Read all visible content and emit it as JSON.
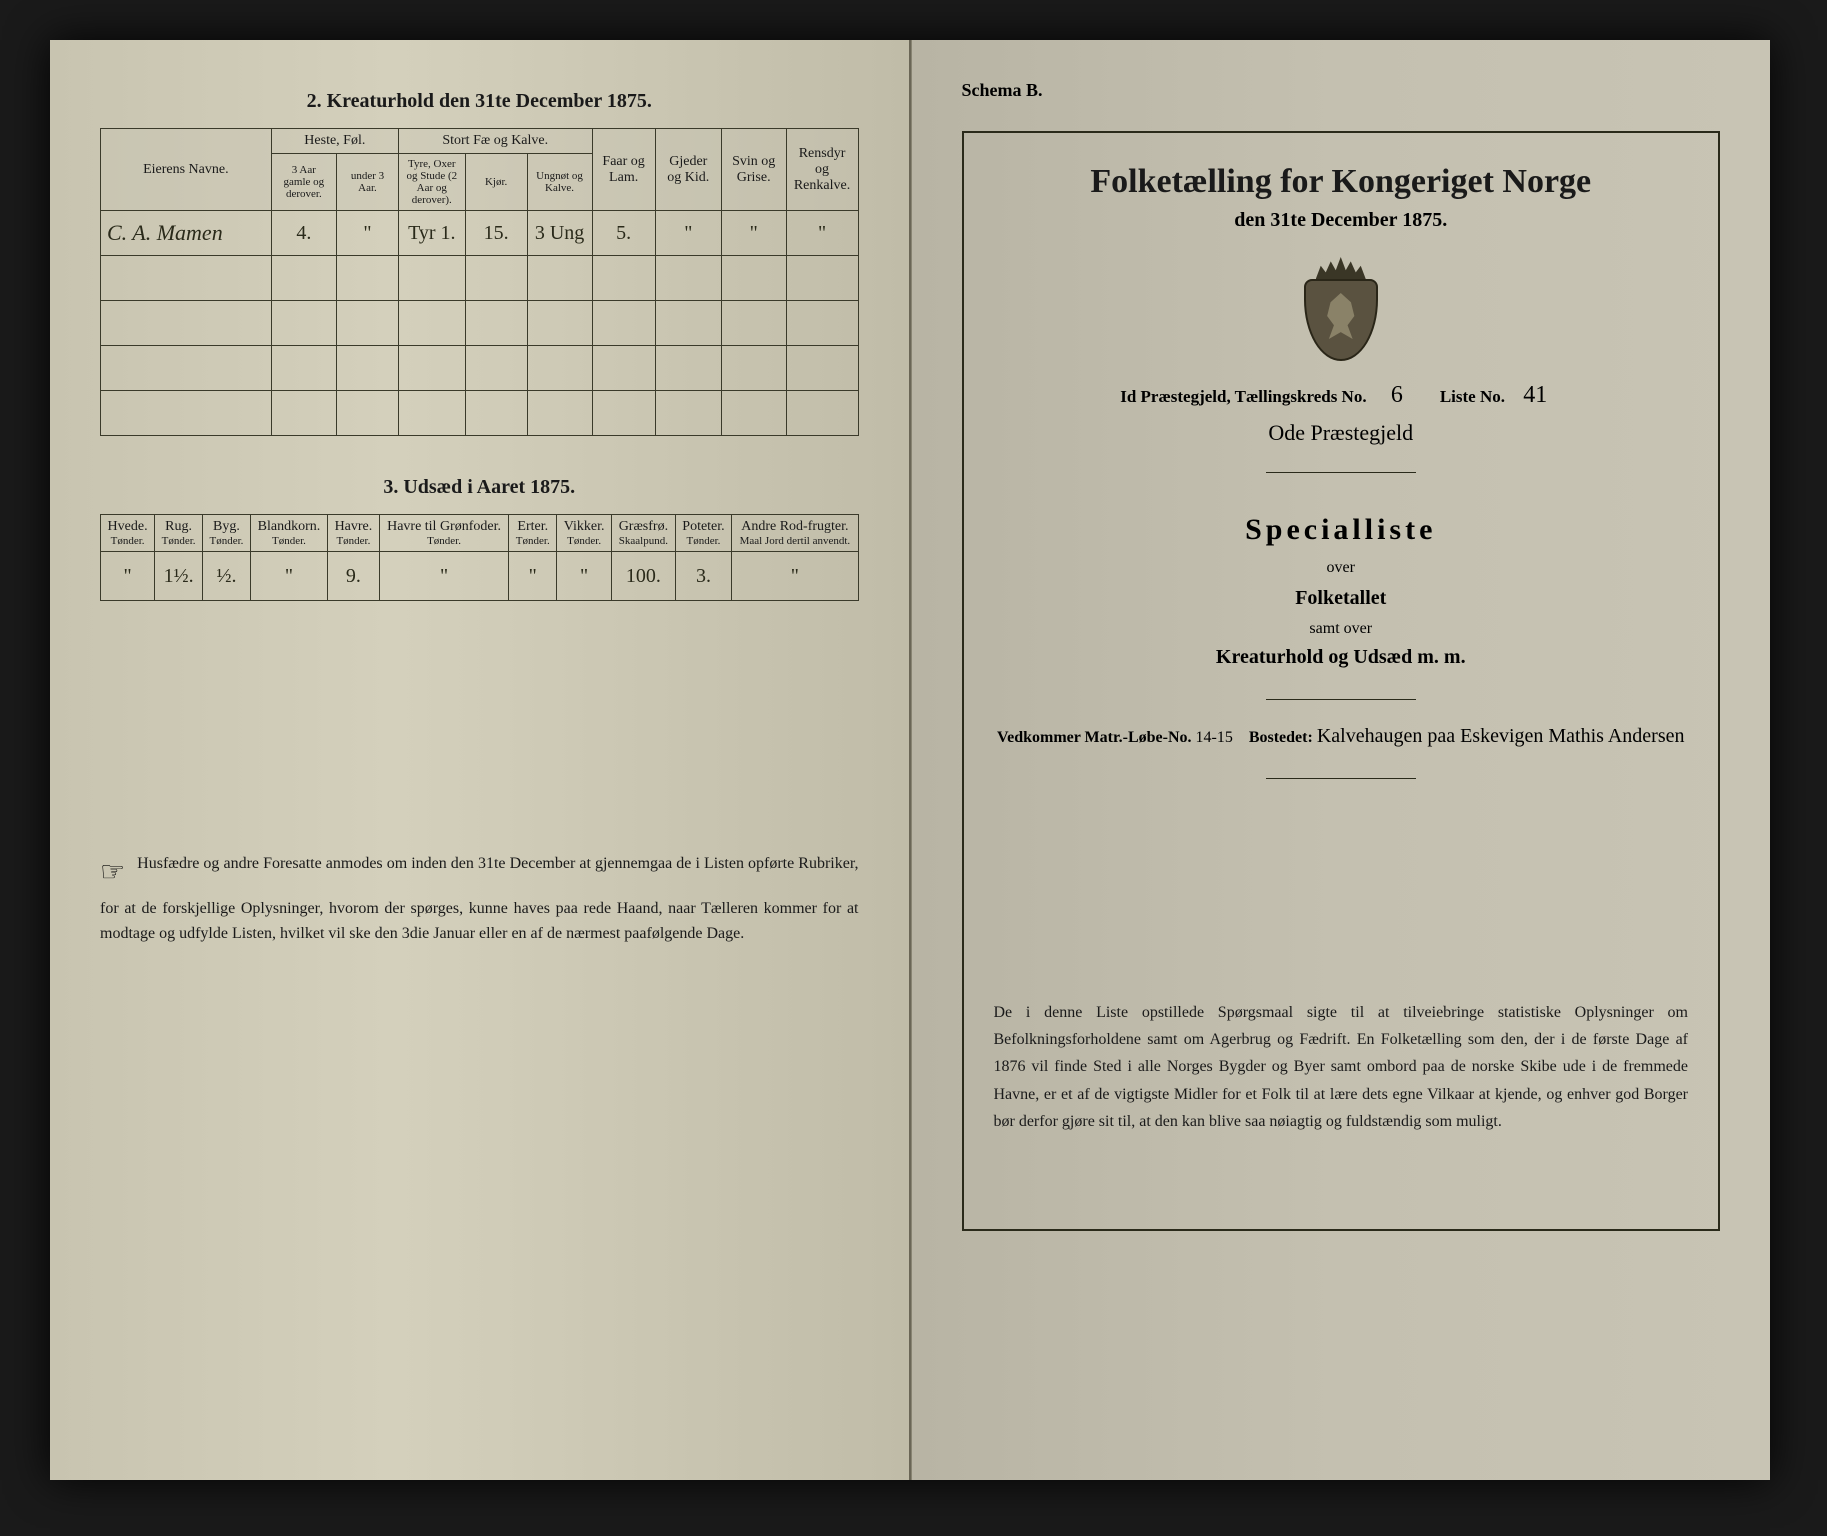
{
  "left": {
    "section2_title": "2.  Kreaturhold den 31te December 1875.",
    "livestock": {
      "headers": {
        "name": "Eierens Navne.",
        "heste": "Heste, Føl.",
        "heste_sub1": "3 Aar gamle og derover.",
        "heste_sub2": "under 3 Aar.",
        "stort": "Stort Fæ og Kalve.",
        "stort_sub1": "Tyre, Oxer og Stude (2 Aar og derover).",
        "stort_sub2": "Kjør.",
        "stort_sub3": "Ungnøt og Kalve.",
        "faar": "Faar og Lam.",
        "gjeder": "Gjeder og Kid.",
        "svin": "Svin og Grise.",
        "rensdyr": "Rensdyr og Renkalve."
      },
      "row": {
        "name": "C. A. Mamen",
        "c1": "4.",
        "c2": "\"",
        "c3": "Tyr 1.",
        "c4": "15.",
        "c5": "3 Ung",
        "c6": "5.",
        "c7": "\"",
        "c8": "\"",
        "c9": "\""
      }
    },
    "section3_title": "3.  Udsæd i Aaret 1875.",
    "seed": {
      "headers": {
        "hvede": "Hvede.",
        "rug": "Rug.",
        "byg": "Byg.",
        "bland": "Blandkorn.",
        "havre": "Havre.",
        "havre_gron": "Havre til Grønfoder.",
        "erter": "Erter.",
        "vikker": "Vikker.",
        "graes": "Græsfrø.",
        "poteter": "Poteter.",
        "andre": "Andre Rod-frugter.",
        "unit_tonder": "Tønder.",
        "unit_skaal": "Skaalpund.",
        "unit_maal": "Maal Jord dertil anvendt."
      },
      "row": {
        "hvede": "\"",
        "rug": "1½.",
        "byg": "½.",
        "bland": "\"",
        "havre": "9.",
        "havre_gron": "\"",
        "erter": "\"",
        "vikker": "\"",
        "graes": "100.",
        "poteter": "3.",
        "andre": "\""
      }
    },
    "footnote": "Husfædre og andre Foresatte anmodes om inden den 31te December at gjennemgaa de i Listen opførte Rubriker, for at de forskjellige Oplysninger, hvorom der spørges, kunne haves paa rede Haand, naar Tælleren kommer for at modtage og udfylde Listen, hvilket vil ske den 3die Januar eller en af de nærmest paafølgende Dage."
  },
  "right": {
    "schema": "Schema B.",
    "census_title": "Folketælling for Kongeriget Norge",
    "census_date": "den 31te December 1875.",
    "parish_label_pre": "Id Præstegjeld, Tællingskreds No.",
    "parish_kreds": "6",
    "liste_label": "Liste No.",
    "liste_no": "41",
    "parish_extra": "Ode Præstegjeld",
    "special": "Specialliste",
    "over1": "over",
    "folketallet": "Folketallet",
    "samt": "samt over",
    "kreatur": "Kreaturhold og Udsæd m. m.",
    "matr_label": "Vedkommer Matr.-Løbe-No.",
    "matr_no": "14-15",
    "bostedet_label": "Bostedet:",
    "bostedet": "Kalvehaugen paa Eskevigen  Mathis Andersen",
    "right_foot": "De i denne Liste opstillede Spørgsmaal sigte til at tilveiebringe statistiske Oplysninger om Befolkningsforholdene samt om Agerbrug og Fædrift.  En Folketælling som den, der i de første Dage af 1876 vil finde Sted i alle Norges Bygder og Byer samt ombord paa de norske Skibe ude i de fremmede Havne, er et af de vigtigste Midler for et Folk til at lære dets egne Vilkaar at kjende, og enhver god Borger bør derfor gjøre sit til, at den kan blive saa nøiagtig og fuldstændig som muligt."
  },
  "colors": {
    "ink": "#1a1a1a",
    "paper_left": "#d4d0bc",
    "paper_right": "#c4c0b0",
    "border": "#3a3a2a"
  }
}
